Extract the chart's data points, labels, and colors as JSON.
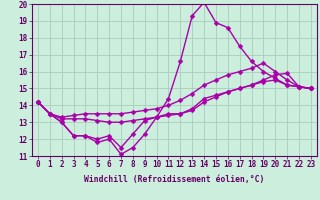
{
  "background_color": "#cceedd",
  "grid_color": "#aaccbb",
  "line_color": "#aa00aa",
  "marker": "D",
  "markersize": 2.5,
  "linewidth": 1.0,
  "xlim": [
    -0.5,
    23.5
  ],
  "ylim": [
    11,
    20
  ],
  "xlabel": "Windchill (Refroidissement éolien,°C)",
  "xlabel_fontsize": 5.8,
  "tick_fontsize": 5.5,
  "xtick_labels": [
    "0",
    "1",
    "2",
    "3",
    "4",
    "5",
    "6",
    "7",
    "8",
    "9",
    "10",
    "11",
    "12",
    "13",
    "14",
    "15",
    "16",
    "17",
    "18",
    "19",
    "20",
    "21",
    "22",
    "23"
  ],
  "ytick_labels": [
    "11",
    "12",
    "13",
    "14",
    "15",
    "16",
    "17",
    "18",
    "19",
    "20"
  ],
  "series": [
    [
      14.2,
      13.5,
      13.0,
      12.2,
      12.2,
      11.8,
      12.0,
      11.1,
      11.5,
      12.3,
      13.3,
      14.4,
      16.6,
      19.3,
      20.1,
      18.9,
      18.6,
      17.5,
      16.6,
      16.0,
      15.6,
      15.2,
      15.1,
      15.0
    ],
    [
      14.2,
      13.5,
      13.2,
      13.2,
      13.2,
      13.1,
      13.0,
      13.0,
      13.1,
      13.2,
      13.3,
      13.4,
      13.5,
      13.7,
      14.2,
      14.5,
      14.8,
      15.0,
      15.2,
      15.5,
      15.8,
      15.9,
      15.1,
      15.0
    ],
    [
      14.2,
      13.5,
      13.3,
      13.4,
      13.5,
      13.5,
      13.5,
      13.5,
      13.6,
      13.7,
      13.8,
      14.0,
      14.3,
      14.7,
      15.2,
      15.5,
      15.8,
      16.0,
      16.2,
      16.5,
      16.0,
      15.5,
      15.1,
      15.0
    ],
    [
      14.2,
      13.5,
      13.0,
      12.2,
      12.2,
      12.0,
      12.2,
      11.5,
      12.3,
      13.1,
      13.3,
      13.5,
      13.5,
      13.8,
      14.4,
      14.6,
      14.8,
      15.0,
      15.2,
      15.4,
      15.5,
      15.2,
      15.1,
      15.0
    ]
  ]
}
